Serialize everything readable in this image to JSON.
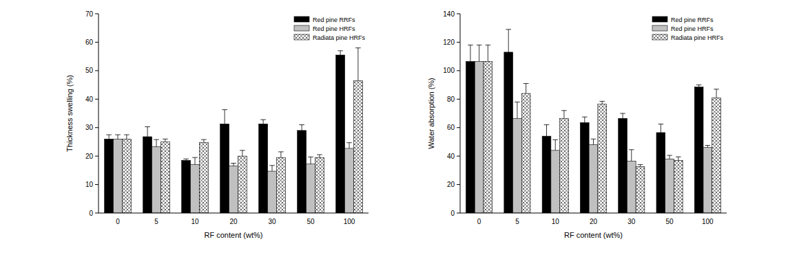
{
  "chart_data": [
    {
      "type": "bar",
      "x_label": "RF content (wt%)",
      "y_label": "Thickness swelling (%)",
      "categories": [
        "0",
        "5",
        "10",
        "20",
        "30",
        "50",
        "100"
      ],
      "series": [
        {
          "name": "Red pine RRFs",
          "color": "#000000",
          "values": [
            26,
            26.8,
            18.5,
            31.3,
            31.3,
            29,
            55.5
          ],
          "errors": [
            1.5,
            3.5,
            0.5,
            5,
            1.5,
            2,
            1.5
          ]
        },
        {
          "name": "Red pine HRFs",
          "color": "#c0c0c0",
          "values": [
            26,
            23.3,
            17,
            16.5,
            14.7,
            17.2,
            22.7
          ],
          "errors": [
            1.5,
            2.5,
            2.5,
            1,
            2,
            2.5,
            2
          ]
        },
        {
          "name": "Radiata pine HRFs",
          "color": "#404040",
          "values": [
            26,
            25,
            24.8,
            20,
            19.5,
            19.5,
            46.5
          ],
          "errors": [
            1.5,
            1,
            1,
            2,
            2,
            1,
            11.5
          ]
        }
      ],
      "ylim": [
        0,
        70
      ],
      "yticks": [
        0,
        10,
        20,
        30,
        40,
        50,
        60,
        70
      ],
      "legend": "upper right"
    },
    {
      "type": "bar",
      "x_label": "RF content (wt%)",
      "y_label": "Water absorption (%)",
      "categories": [
        "0",
        "5",
        "10",
        "20",
        "30",
        "50",
        "100"
      ],
      "series": [
        {
          "name": "Red pine RRFs",
          "color": "#000000",
          "values": [
            106.5,
            113,
            54,
            63.5,
            66.5,
            56.5,
            88.5
          ],
          "errors": [
            11.5,
            16,
            8,
            4,
            3.5,
            6,
            1.5
          ]
        },
        {
          "name": "Red pine HRFs",
          "color": "#c0c0c0",
          "values": [
            106.5,
            66.5,
            44,
            48,
            36.5,
            38,
            46
          ],
          "errors": [
            11.5,
            11.5,
            7.5,
            4,
            8,
            2.5,
            1.5
          ]
        },
        {
          "name": "Radiata pine HRFs",
          "color": "#404040",
          "values": [
            106.5,
            84,
            66.5,
            76.5,
            32.5,
            37,
            81
          ],
          "errors": [
            11.5,
            7,
            5.5,
            2,
            1.5,
            2.5,
            6
          ]
        }
      ],
      "ylim": [
        0,
        140
      ],
      "yticks": [
        0,
        20,
        40,
        60,
        80,
        100,
        120,
        140
      ],
      "legend": "upper right"
    }
  ]
}
